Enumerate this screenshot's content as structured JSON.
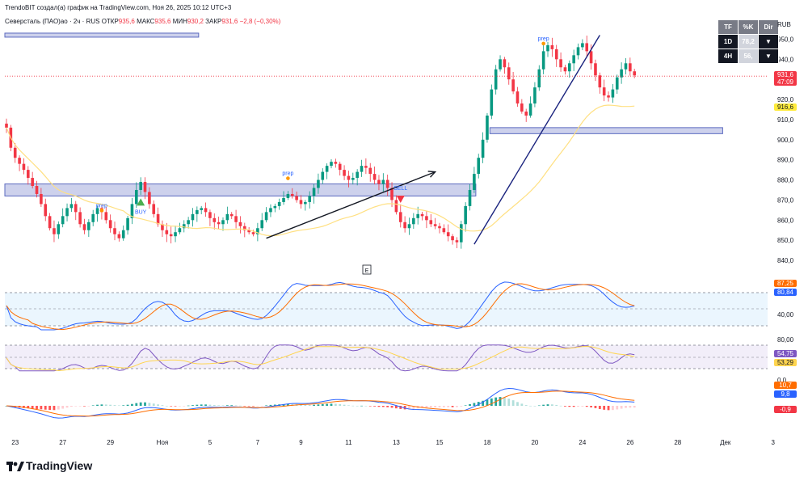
{
  "header": {
    "created_by": "TrendoBIT создал(а) график на TradingView.com, Ноя 26, 2025 10:12 UTC+3",
    "symbol": "Северсталь (ПАО)ао · 2ч · RUS",
    "open_label": "ОТКР",
    "open": "935,6",
    "high_label": "МАКС",
    "high": "935,6",
    "low_label": "МИН",
    "low": "930,2",
    "close_label": "ЗАКР",
    "close": "931,6",
    "change": "−2,8 (−0,30%)"
  },
  "currency": "RUB",
  "tf_table": {
    "head": [
      "TF",
      "%K",
      "Dir"
    ],
    "rows": [
      {
        "tf": "1D",
        "k": "78,2",
        "dir": "▼"
      },
      {
        "tf": "4H",
        "k": "56,",
        "dir": "▼"
      }
    ],
    "colors": {
      "head_bg": "#787b86",
      "tf_bg": "#131722",
      "k_bg": "#d1d4dc",
      "dir_bg": "#131722"
    }
  },
  "price_badges": {
    "last": "931,6",
    "countdown": "47:09",
    "ma": "916,6",
    "last_color": "#f23645",
    "ma_color": "#ffeb3b"
  },
  "panel_badges": {
    "p1": [
      "87,25",
      "80,84"
    ],
    "p1_label": "40,00",
    "p2": [
      "54,75",
      "53,29"
    ],
    "p2_label": "80,00",
    "p3": [
      "10,7",
      "9,8",
      "-0,9"
    ],
    "p3_label": "0,0"
  },
  "e_marker": "E",
  "footer_brand": "TradingView",
  "chart_data": {
    "type": "candlestick",
    "yticks": [
      "950,0",
      "940,0",
      "930,0",
      "920,0",
      "910,0",
      "900,0",
      "890,0",
      "880,0",
      "870,0",
      "860,0",
      "850,0",
      "840,0"
    ],
    "ytick_values": [
      950,
      940,
      930,
      920,
      910,
      900,
      890,
      880,
      870,
      860,
      850,
      840
    ],
    "ylim": [
      836,
      955
    ],
    "x_ticks": [
      {
        "label": "23",
        "bar": 2
      },
      {
        "label": "27",
        "bar": 13
      },
      {
        "label": "29",
        "bar": 24
      },
      {
        "label": "Ноя",
        "bar": 36
      },
      {
        "label": "5",
        "bar": 47
      },
      {
        "label": "7",
        "bar": 58
      },
      {
        "label": "9",
        "bar": 68
      },
      {
        "label": "11",
        "bar": 79
      },
      {
        "label": "13",
        "bar": 90
      },
      {
        "label": "15",
        "bar": 100
      },
      {
        "label": "18",
        "bar": 111
      },
      {
        "label": "20",
        "bar": 122
      },
      {
        "label": "24",
        "bar": 133
      },
      {
        "label": "26",
        "bar": 144
      },
      {
        "label": "28",
        "bar": 155
      },
      {
        "label": "Дек",
        "bar": 166
      },
      {
        "label": "3",
        "bar": 177
      }
    ],
    "closes": [
      906,
      896,
      891,
      888,
      885,
      881,
      877,
      873,
      868,
      862,
      856,
      853,
      858,
      862,
      866,
      868,
      864,
      858,
      855,
      859,
      863,
      866,
      864,
      860,
      856,
      853,
      851,
      855,
      861,
      868,
      875,
      879,
      874,
      868,
      863,
      858,
      855,
      853,
      852,
      854,
      856,
      858,
      860,
      863,
      865,
      866,
      864,
      861,
      859,
      858,
      860,
      863,
      862,
      859,
      857,
      855,
      854,
      853,
      856,
      860,
      864,
      866,
      867,
      869,
      871,
      873,
      872,
      870,
      868,
      869,
      872,
      876,
      880,
      884,
      887,
      889,
      888,
      885,
      882,
      880,
      881,
      884,
      887,
      886,
      883,
      880,
      878,
      880,
      876,
      870,
      864,
      859,
      856,
      858,
      861,
      863,
      862,
      860,
      858,
      857,
      856,
      854,
      852,
      850,
      849,
      858,
      867,
      875,
      883,
      891,
      900,
      912,
      925,
      935,
      940,
      936,
      930,
      924,
      918,
      914,
      912,
      918,
      926,
      935,
      944,
      947,
      945,
      940,
      936,
      934,
      938,
      942,
      946,
      948,
      944,
      938,
      932,
      926,
      922,
      921,
      925,
      931,
      935,
      938,
      934,
      932
    ],
    "annotations": [
      {
        "text": "BUY",
        "bar": 31,
        "price": 864,
        "color": "#2962ff"
      },
      {
        "text": "prep",
        "bar": 22,
        "price": 864,
        "color": "#2962ff"
      },
      {
        "text": "prep",
        "bar": 65,
        "price": 880,
        "color": "#2962ff"
      },
      {
        "text": "SELL",
        "bar": 91,
        "price": 875,
        "color": "#2962ff"
      },
      {
        "text": "prep",
        "bar": 124,
        "price": 947,
        "color": "#2962ff"
      }
    ],
    "zones": [
      {
        "from": 878,
        "to": 872,
        "bar_from": 0,
        "bar_to": 108
      },
      {
        "from": 906,
        "to": 903,
        "bar_from": 112,
        "bar_to": 165
      },
      {
        "from": 953,
        "to": 951,
        "bar_from": 0,
        "bar_to": 44
      }
    ],
    "trendlines": [
      {
        "bar1": 60,
        "p1": 851,
        "bar2": 99,
        "p2": 884,
        "color": "#131722",
        "arrow": true
      },
      {
        "bar1": 108,
        "p1": 848,
        "bar2": 137,
        "p2": 952,
        "color": "#1a237e",
        "arrow": false
      }
    ],
    "current_price_line": 931.6,
    "ma_last": 916.6
  }
}
